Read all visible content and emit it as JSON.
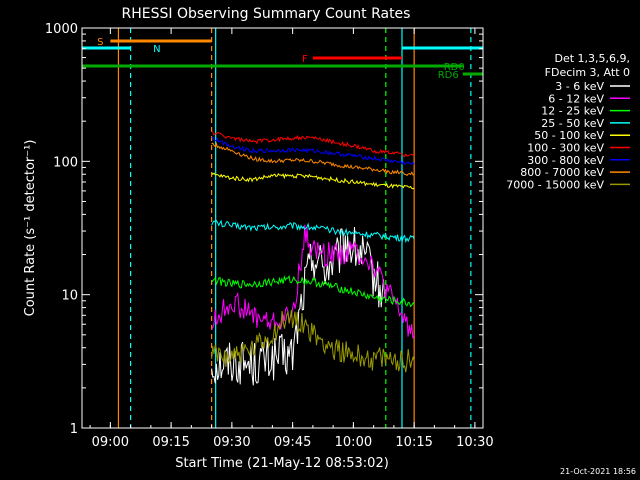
{
  "chart_data": {
    "type": "line",
    "title": "RHESSI Observing Summary Count Rates",
    "xlabel": "Start Time (21-May-12 08:53:02)",
    "ylabel": "Count Rate (s⁻¹ detector⁻¹)",
    "yscale": "log",
    "ylim": [
      1,
      1000
    ],
    "xlim": [
      "08:53",
      "10:32"
    ],
    "x_ticks": [
      "09:00",
      "09:15",
      "09:30",
      "09:45",
      "10:00",
      "10:15",
      "10:30"
    ],
    "y_ticks": [
      "1",
      "10",
      "100",
      "1000"
    ],
    "legend_header": [
      "Det 1,3,5,6,9,",
      "FDecim 3, Att 0"
    ],
    "legend_position": "right",
    "series": [
      {
        "name": "3 - 6 keV",
        "color": "#ffffff",
        "x": [
          "09:25",
          "09:30",
          "09:35",
          "09:40",
          "09:45",
          "09:48",
          "09:50",
          "09:53",
          "09:56",
          "09:58",
          "10:00",
          "10:02",
          "10:04",
          "10:06",
          "10:08"
        ],
        "values": [
          3.0,
          3.2,
          3.0,
          3.3,
          3.5,
          12,
          20,
          16,
          18,
          25,
          22,
          20,
          16,
          12,
          9
        ]
      },
      {
        "name": "6 - 12 keV",
        "color": "#ff00ff",
        "x": [
          "09:25",
          "09:30",
          "09:35",
          "09:40",
          "09:45",
          "09:48",
          "09:50",
          "09:53",
          "09:56",
          "09:58",
          "10:00",
          "10:02",
          "10:05",
          "10:08",
          "10:12",
          "10:15"
        ],
        "values": [
          6,
          9,
          7,
          6,
          7,
          28,
          22,
          20,
          21,
          20,
          22,
          20,
          17,
          11,
          7,
          5
        ]
      },
      {
        "name": "12 - 25 keV",
        "color": "#00ff00",
        "x": [
          "09:25",
          "09:30",
          "09:35",
          "09:40",
          "09:45",
          "09:50",
          "09:55",
          "10:00",
          "10:05",
          "10:10",
          "10:15"
        ],
        "values": [
          13,
          12,
          12,
          12.5,
          13,
          12.5,
          11.5,
          10.5,
          9.5,
          9,
          8.5
        ]
      },
      {
        "name": "25 - 50 keV",
        "color": "#00ffff",
        "x": [
          "09:25",
          "09:30",
          "09:35",
          "09:40",
          "09:45",
          "09:50",
          "09:55",
          "10:00",
          "10:05",
          "10:10",
          "10:15"
        ],
        "values": [
          35,
          33,
          32,
          32,
          33,
          32,
          30,
          29,
          28,
          27,
          26
        ]
      },
      {
        "name": "50 - 100 keV",
        "color": "#ffff00",
        "x": [
          "09:25",
          "09:30",
          "09:35",
          "09:40",
          "09:45",
          "09:50",
          "09:55",
          "10:00",
          "10:05",
          "10:10",
          "10:15"
        ],
        "values": [
          80,
          75,
          73,
          78,
          78,
          77,
          73,
          70,
          67,
          65,
          63
        ]
      },
      {
        "name": "100 - 300 keV",
        "color": "#ff0000",
        "x": [
          "09:25",
          "09:30",
          "09:35",
          "09:40",
          "09:45",
          "09:50",
          "09:55",
          "10:00",
          "10:05",
          "10:10",
          "10:15"
        ],
        "values": [
          165,
          150,
          140,
          145,
          150,
          150,
          140,
          130,
          120,
          115,
          110
        ]
      },
      {
        "name": "300 - 800 keV",
        "color": "#0000ff",
        "x": [
          "09:25",
          "09:30",
          "09:35",
          "09:40",
          "09:45",
          "09:50",
          "09:55",
          "10:00",
          "10:05",
          "10:10",
          "10:15"
        ],
        "values": [
          150,
          130,
          120,
          120,
          122,
          120,
          115,
          110,
          105,
          100,
          95
        ]
      },
      {
        "name": "800 - 7000 keV",
        "color": "#ff8800",
        "x": [
          "09:25",
          "09:30",
          "09:35",
          "09:40",
          "09:45",
          "09:50",
          "09:55",
          "10:00",
          "10:05",
          "10:10",
          "10:15"
        ],
        "values": [
          135,
          120,
          105,
          100,
          102,
          100,
          95,
          90,
          87,
          83,
          80
        ]
      },
      {
        "name": "7000 - 15000 keV",
        "color": "#999900",
        "x": [
          "09:25",
          "09:30",
          "09:35",
          "09:40",
          "09:43",
          "09:47",
          "09:50",
          "09:55",
          "10:00",
          "10:05",
          "10:10",
          "10:15"
        ],
        "values": [
          3.5,
          3.5,
          3.8,
          5,
          6.5,
          6.5,
          5,
          4,
          3.5,
          3.3,
          3.2,
          3.2
        ]
      }
    ],
    "flag_bars": [
      {
        "label": "S",
        "color": "#ff8800",
        "x_start": "09:00",
        "x_end": "09:25"
      },
      {
        "label": "N",
        "color": "#00ffff",
        "x_start": "08:53",
        "x_end": "09:05",
        "label_at": "09:10"
      },
      {
        "label": "N",
        "color": "#00ffff",
        "x_start": "10:12",
        "x_end": "10:32"
      },
      {
        "label": "F",
        "color": "#ff0000",
        "x_start": "09:50",
        "x_end": "10:12"
      },
      {
        "label": "RD0",
        "color": "#00aa00",
        "x_start": "08:53",
        "x_end": "10:27"
      },
      {
        "label": "RD6",
        "color": "#00aa00",
        "x_start": "10:27",
        "x_end": "10:32"
      }
    ],
    "vertical_markers": [
      {
        "x": "09:02",
        "color": "#ff8800",
        "style": "solid"
      },
      {
        "x": "09:05",
        "color": "#00ffff",
        "style": "dashed"
      },
      {
        "x": "09:25",
        "color": "#ff8800",
        "style": "dashed"
      },
      {
        "x": "09:26",
        "color": "#00ffff",
        "style": "solid"
      },
      {
        "x": "10:08",
        "color": "#00ff00",
        "style": "dashed"
      },
      {
        "x": "10:12",
        "color": "#00ffff",
        "style": "solid"
      },
      {
        "x": "10:15",
        "color": "#ff8800",
        "style": "solid"
      },
      {
        "x": "10:29",
        "color": "#00ffff",
        "style": "dashed"
      }
    ]
  },
  "footer": {
    "date": "21-Oct-2021 18:56"
  }
}
